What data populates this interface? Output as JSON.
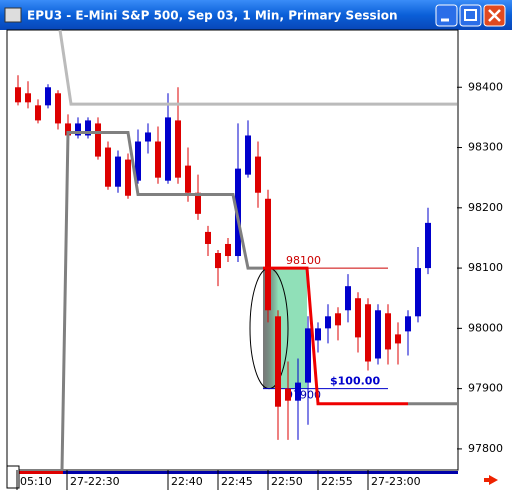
{
  "window_title": "EPU3 - E-Mini S&P 500, Sep 03, 1 Min, Primary Session",
  "chart_data": {
    "type": "candlestick",
    "open": [
      98400,
      98390,
      98370,
      98370,
      98390,
      98340,
      98320,
      98320,
      98340,
      98300,
      98235,
      98280,
      98245,
      98310,
      98310,
      98245,
      98345,
      98270,
      98225,
      98160,
      98125,
      98140,
      98120,
      98255,
      98285,
      98215,
      98020,
      97900,
      97880,
      97910,
      97980,
      98000,
      98025,
      98030,
      98050,
      98040,
      97950,
      98025,
      97990,
      97995,
      98020,
      98100
    ],
    "high": [
      98420,
      98410,
      98380,
      98405,
      98395,
      98355,
      98350,
      98350,
      98350,
      98310,
      98295,
      98290,
      98330,
      98340,
      98335,
      98390,
      98400,
      98300,
      98255,
      98170,
      98130,
      98150,
      98340,
      98345,
      98310,
      98230,
      98030,
      97945,
      97950,
      98020,
      98010,
      98040,
      98035,
      98090,
      98060,
      98050,
      98040,
      98040,
      98010,
      98030,
      98135,
      98200
    ],
    "low": [
      98370,
      98365,
      98340,
      98365,
      98330,
      98310,
      98315,
      98315,
      98280,
      98230,
      98225,
      98215,
      98240,
      98290,
      98240,
      98240,
      98240,
      98210,
      98180,
      98120,
      98070,
      98110,
      98110,
      98250,
      98200,
      98010,
      97815,
      97815,
      97815,
      97840,
      97960,
      97975,
      97980,
      98010,
      97960,
      97930,
      97940,
      97940,
      97940,
      97955,
      98010,
      98090
    ],
    "close": [
      98375,
      98375,
      98345,
      98400,
      98340,
      98320,
      98340,
      98345,
      98285,
      98235,
      98285,
      98220,
      98310,
      98325,
      98250,
      98350,
      98250,
      98225,
      98190,
      98140,
      98100,
      98120,
      98265,
      98320,
      98225,
      98030,
      97870,
      97880,
      97910,
      98000,
      98000,
      98020,
      98005,
      98070,
      97985,
      97945,
      98030,
      97965,
      97975,
      98020,
      98100,
      98175
    ],
    "up_color": "#0000cc",
    "down_color": "#dd0000",
    "xlim": [
      -1,
      43.9
    ],
    "ylim": [
      97765,
      98495
    ],
    "xticks": [
      {
        "value": -0.1,
        "label": "05:10"
      },
      {
        "value": 4.9,
        "label": "27-22:30"
      },
      {
        "value": 15,
        "label": "22:40"
      },
      {
        "value": 20,
        "label": "22:45"
      },
      {
        "value": 25,
        "label": "22:50"
      },
      {
        "value": 30,
        "label": "22:55"
      },
      {
        "value": 35,
        "label": "27-23:00"
      }
    ],
    "yticks": [
      97800,
      97900,
      98000,
      98100,
      98200,
      98300,
      98400
    ],
    "lines": [
      {
        "color": "#bbbbbb",
        "x": [
          4.2,
          5.3,
          43.9
        ],
        "values": [
          98495,
          98372,
          98372
        ]
      },
      {
        "color": "#808080",
        "x": [
          4.4,
          5,
          11,
          12,
          21.5,
          23,
          24.5
        ],
        "values": [
          97765,
          98325,
          98325,
          98222,
          98222,
          98100,
          98100
        ]
      },
      {
        "color": "#ee0000",
        "x": [
          24.5,
          28.9,
          30,
          39
        ],
        "values": [
          98100,
          98100,
          97875,
          97875
        ]
      },
      {
        "color": "#808080",
        "x": [
          39,
          43.9
        ],
        "values": [
          97875,
          97875
        ]
      }
    ],
    "target": {
      "value": 98100,
      "label": "98100"
    },
    "entry": {
      "value": 97900,
      "label": "97900"
    },
    "profit_label": "$100.00"
  }
}
